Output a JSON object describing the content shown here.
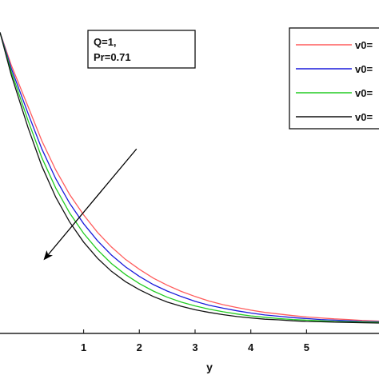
{
  "chart_data": {
    "type": "line",
    "title": "",
    "xlabel": "y",
    "ylabel": "",
    "xlim": [
      -0.5,
      6.3
    ],
    "ylim": [
      -0.03,
      1.0
    ],
    "xticks": [
      1,
      2,
      3,
      4,
      5
    ],
    "grid": false,
    "legend_placement": "top-right",
    "annotation": {
      "lines": [
        "Q=1,",
        "Pr=0.71"
      ]
    },
    "arrow": {
      "from": [
        1.95,
        0.54
      ],
      "to": [
        0.3,
        0.2
      ]
    },
    "series": [
      {
        "name": "v0=",
        "color": "#ff5c5c",
        "x": [
          -0.5,
          -0.3,
          0,
          0.25,
          0.5,
          0.75,
          1,
          1.25,
          1.5,
          1.75,
          2,
          2.25,
          2.5,
          2.75,
          3,
          3.25,
          3.5,
          3.75,
          4,
          4.25,
          4.5,
          4.75,
          5,
          5.25,
          5.5,
          5.75,
          6,
          6.3
        ],
        "y": [
          0.9,
          0.8,
          0.672,
          0.565,
          0.475,
          0.399,
          0.336,
          0.282,
          0.237,
          0.199,
          0.168,
          0.141,
          0.119,
          0.1,
          0.084,
          0.07,
          0.059,
          0.05,
          0.042,
          0.035,
          0.03,
          0.025,
          0.021,
          0.018,
          0.015,
          0.013,
          0.01,
          0.008
        ]
      },
      {
        "name": "v0=",
        "color": "#1a1adb",
        "x": [
          -0.5,
          -0.3,
          0,
          0.25,
          0.5,
          0.75,
          1,
          1.25,
          1.5,
          1.75,
          2,
          2.25,
          2.5,
          2.75,
          3,
          3.25,
          3.5,
          3.75,
          4,
          4.25,
          4.5,
          4.75,
          5,
          5.25,
          5.5,
          5.75,
          6,
          6.3
        ],
        "y": [
          0.9,
          0.79,
          0.651,
          0.54,
          0.448,
          0.372,
          0.309,
          0.256,
          0.212,
          0.176,
          0.146,
          0.121,
          0.101,
          0.084,
          0.069,
          0.057,
          0.048,
          0.04,
          0.033,
          0.027,
          0.023,
          0.019,
          0.016,
          0.013,
          0.011,
          0.009,
          0.007,
          0.006
        ]
      },
      {
        "name": "v0=",
        "color": "#22cc22",
        "x": [
          -0.5,
          -0.3,
          0,
          0.25,
          0.5,
          0.75,
          1,
          1.25,
          1.5,
          1.75,
          2,
          2.25,
          2.5,
          2.75,
          3,
          3.25,
          3.5,
          3.75,
          4,
          4.25,
          4.5,
          4.75,
          5,
          5.25,
          5.5,
          5.75,
          6,
          6.3
        ],
        "y": [
          0.9,
          0.78,
          0.629,
          0.513,
          0.419,
          0.342,
          0.279,
          0.228,
          0.186,
          0.152,
          0.124,
          0.101,
          0.082,
          0.067,
          0.055,
          0.045,
          0.037,
          0.03,
          0.024,
          0.02,
          0.016,
          0.013,
          0.011,
          0.009,
          0.007,
          0.006,
          0.005,
          0.004
        ]
      },
      {
        "name": "v0=",
        "color": "#111111",
        "x": [
          -0.5,
          -0.3,
          0,
          0.25,
          0.5,
          0.75,
          1,
          1.25,
          1.5,
          1.75,
          2,
          2.25,
          2.5,
          2.75,
          3,
          3.25,
          3.5,
          3.75,
          4,
          4.25,
          4.5,
          4.75,
          5,
          5.25,
          5.5,
          5.75,
          6,
          6.3
        ],
        "y": [
          0.9,
          0.77,
          0.607,
          0.487,
          0.391,
          0.314,
          0.252,
          0.202,
          0.162,
          0.13,
          0.105,
          0.084,
          0.067,
          0.054,
          0.043,
          0.035,
          0.028,
          0.022,
          0.018,
          0.014,
          0.012,
          0.009,
          0.007,
          0.006,
          0.005,
          0.004,
          0.003,
          0.002
        ]
      }
    ]
  }
}
